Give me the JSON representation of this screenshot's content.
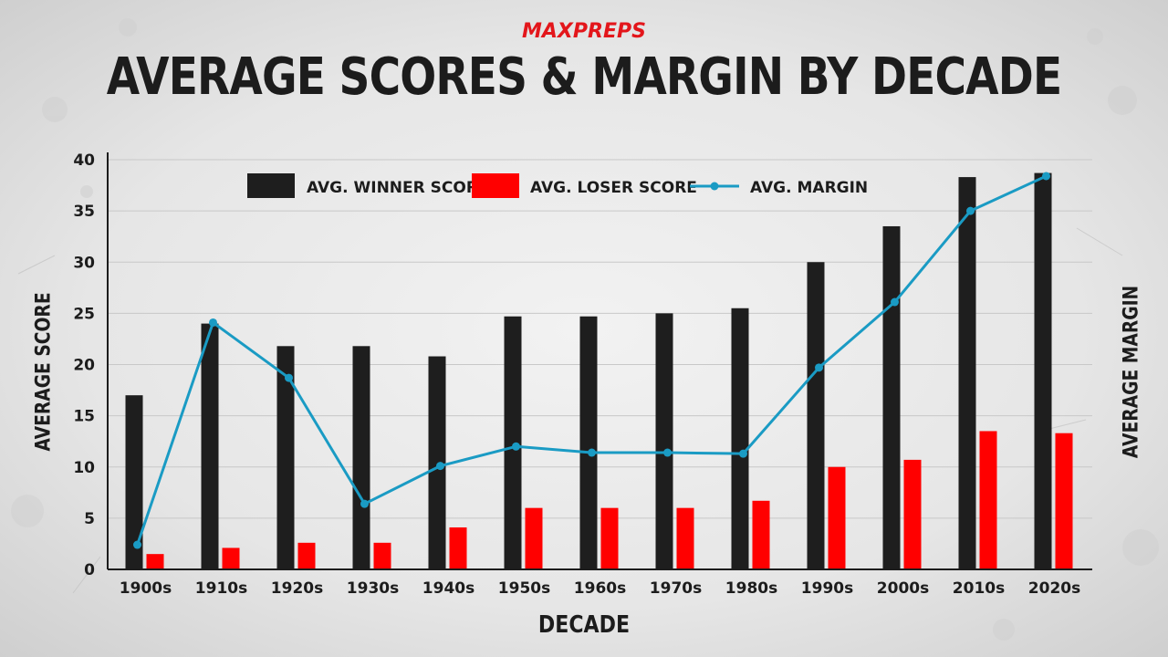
{
  "logo": "MAXPREPS",
  "chart_data": {
    "type": "bar",
    "title": "AVERAGE SCORES & MARGIN BY DECADE",
    "xlabel": "DECADE",
    "ylabel": "AVERAGE SCORE",
    "y2label": "AVERAGE MARGIN",
    "ylim": [
      0,
      40
    ],
    "yticks": [
      0,
      5,
      10,
      15,
      20,
      25,
      30,
      35,
      40
    ],
    "grid": true,
    "legend_position": "top",
    "categories": [
      "1900s",
      "1910s",
      "1920s",
      "1930s",
      "1940s",
      "1950s",
      "1960s",
      "1970s",
      "1980s",
      "1990s",
      "2000s",
      "2010s",
      "2020s"
    ],
    "series": [
      {
        "name": "AVG. WINNER SCORE",
        "type": "bar",
        "color": "#1e1e1e",
        "values": [
          17,
          24,
          21.8,
          21.8,
          20.8,
          24.7,
          24.7,
          25,
          25.5,
          30,
          33.5,
          38.3,
          38.7
        ]
      },
      {
        "name": "AVG. LOSER SCORE",
        "type": "bar",
        "color": "#ff0000",
        "values": [
          1.5,
          2.1,
          2.6,
          2.6,
          4.1,
          6,
          6,
          6,
          6.7,
          10,
          10.7,
          13.5,
          13.3
        ]
      },
      {
        "name": "AVG. MARGIN",
        "type": "line",
        "color": "#1a9bc4",
        "values": [
          2.4,
          24.1,
          18.7,
          6.4,
          10.1,
          12,
          11.4,
          11.4,
          11.3,
          19.7,
          26.1,
          35,
          38.4
        ]
      }
    ]
  }
}
